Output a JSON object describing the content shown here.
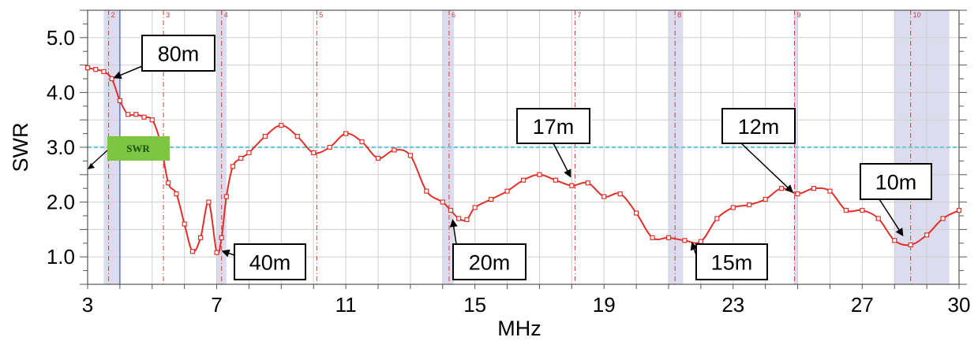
{
  "chart_data": {
    "type": "line",
    "xlabel": "MHz",
    "ylabel": "SWR",
    "xlim": [
      3,
      30
    ],
    "ylim": [
      0.5,
      5.5
    ],
    "x_ticks": [
      3,
      7,
      11,
      15,
      19,
      23,
      27,
      30
    ],
    "x_tick_labels": [
      "3",
      "7",
      "11",
      "15",
      "19",
      "23",
      "27",
      "30"
    ],
    "y_ticks": [
      1.0,
      2.0,
      3.0,
      4.0,
      5.0
    ],
    "y_tick_labels": [
      "1.0",
      "2.0",
      "3.0",
      "4.0",
      "5.0"
    ],
    "grid": true,
    "reference_line": {
      "label": "SWR",
      "value": 3.0,
      "color": "#6cc8dc"
    },
    "series": [
      {
        "color": "#e0302a",
        "x": [
          3.0,
          3.25,
          3.5,
          3.75,
          4.0,
          4.25,
          4.5,
          4.75,
          5.0,
          5.25,
          5.5,
          5.75,
          6.0,
          6.25,
          6.5,
          6.75,
          7.0,
          7.15,
          7.3,
          7.5,
          7.75,
          8.0,
          8.5,
          9.0,
          9.5,
          10.0,
          10.5,
          11.0,
          11.5,
          12.0,
          12.5,
          13.0,
          13.5,
          14.0,
          14.25,
          14.5,
          14.75,
          15.0,
          15.5,
          16.0,
          16.5,
          17.0,
          17.5,
          18.0,
          18.5,
          19.0,
          19.5,
          20.0,
          20.5,
          21.0,
          21.5,
          22.0,
          22.5,
          23.0,
          23.5,
          24.0,
          24.5,
          25.0,
          25.5,
          26.0,
          26.5,
          27.0,
          27.5,
          28.0,
          28.5,
          29.0,
          29.5,
          30.0
        ],
        "y": [
          4.45,
          4.42,
          4.38,
          4.25,
          3.85,
          3.6,
          3.6,
          3.55,
          3.5,
          3.1,
          2.35,
          2.15,
          1.6,
          1.1,
          1.35,
          2.0,
          1.08,
          1.35,
          2.1,
          2.65,
          2.8,
          2.9,
          3.2,
          3.4,
          3.2,
          2.9,
          3.0,
          3.25,
          3.1,
          2.8,
          2.95,
          2.85,
          2.2,
          2.0,
          1.85,
          1.7,
          1.68,
          1.9,
          2.05,
          2.2,
          2.4,
          2.5,
          2.4,
          2.3,
          2.35,
          2.1,
          2.15,
          1.8,
          1.35,
          1.35,
          1.3,
          1.28,
          1.7,
          1.9,
          1.95,
          2.05,
          2.25,
          2.15,
          2.25,
          2.2,
          1.85,
          1.85,
          1.7,
          1.3,
          1.22,
          1.4,
          1.7,
          1.85
        ]
      }
    ],
    "band_markers": [
      {
        "label": "2",
        "freq": 3.65
      },
      {
        "label": "3",
        "freq": 5.35
      },
      {
        "label": "4",
        "freq": 7.15
      },
      {
        "label": "5",
        "freq": 10.1
      },
      {
        "label": "6",
        "freq": 14.2
      },
      {
        "label": "7",
        "freq": 18.1
      },
      {
        "label": "8",
        "freq": 21.2
      },
      {
        "label": "9",
        "freq": 24.9
      },
      {
        "label": "10",
        "freq": 28.5
      }
    ],
    "band_shading": [
      [
        3.5,
        4.0
      ],
      [
        7.0,
        7.3
      ],
      [
        14.0,
        14.35
      ],
      [
        21.0,
        21.45
      ],
      [
        24.89,
        24.99
      ],
      [
        28.0,
        29.7
      ]
    ],
    "blue_line_freq": 4.0,
    "annotations": [
      {
        "text": "80m",
        "target_x": 3.75,
        "target_y": 4.25
      },
      {
        "text": "40m",
        "target_x": 7.1,
        "target_y": 1.12
      },
      {
        "text": "20m",
        "target_x": 14.3,
        "target_y": 1.72
      },
      {
        "text": "17m",
        "target_x": 18.0,
        "target_y": 2.42
      },
      {
        "text": "15m",
        "target_x": 21.7,
        "target_y": 1.3
      },
      {
        "text": "12m",
        "target_x": 24.9,
        "target_y": 2.15
      },
      {
        "text": "10m",
        "target_x": 28.3,
        "target_y": 1.35
      }
    ]
  }
}
